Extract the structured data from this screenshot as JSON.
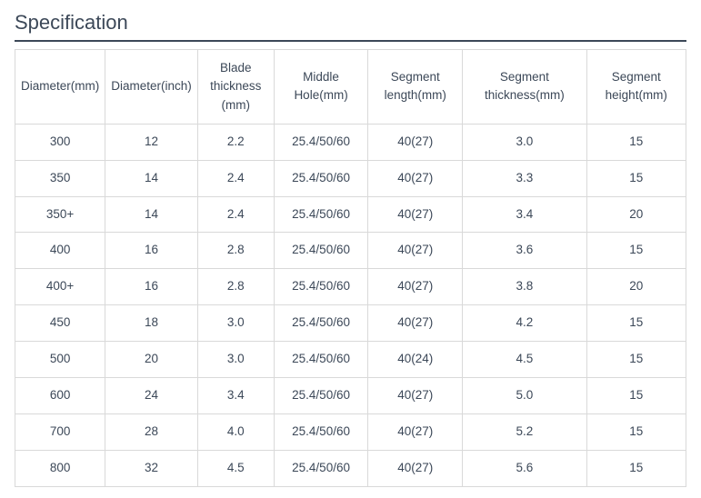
{
  "title": "Specification",
  "table": {
    "columns": [
      "Diameter(mm)",
      "Diameter(inch)",
      "Blade thickness (mm)",
      "Middle Hole(mm)",
      "Segment length(mm)",
      "Segment thickness(mm)",
      "Segment height(mm)"
    ],
    "column_widths_pct": [
      11,
      11,
      12,
      15,
      15,
      20,
      16
    ],
    "rows": [
      [
        "300",
        "12",
        "2.2",
        "25.4/50/60",
        "40(27)",
        "3.0",
        "15"
      ],
      [
        "350",
        "14",
        "2.4",
        "25.4/50/60",
        "40(27)",
        "3.3",
        "15"
      ],
      [
        "350+",
        "14",
        "2.4",
        "25.4/50/60",
        "40(27)",
        "3.4",
        "20"
      ],
      [
        "400",
        "16",
        "2.8",
        "25.4/50/60",
        "40(27)",
        "3.6",
        "15"
      ],
      [
        "400+",
        "16",
        "2.8",
        "25.4/50/60",
        "40(27)",
        "3.8",
        "20"
      ],
      [
        "450",
        "18",
        "3.0",
        "25.4/50/60",
        "40(27)",
        "4.2",
        "15"
      ],
      [
        "500",
        "20",
        "3.0",
        "25.4/50/60",
        "40(24)",
        "4.5",
        "15"
      ],
      [
        "600",
        "24",
        "3.4",
        "25.4/50/60",
        "40(27)",
        "5.0",
        "15"
      ],
      [
        "700",
        "28",
        "4.0",
        "25.4/50/60",
        "40(27)",
        "5.2",
        "15"
      ],
      [
        "800",
        "32",
        "4.5",
        "25.4/50/60",
        "40(27)",
        "5.6",
        "15"
      ]
    ],
    "border_color": "#d9d9d9",
    "text_color": "#3c4858",
    "title_border_color": "#3c4858",
    "background_color": "#ffffff"
  }
}
